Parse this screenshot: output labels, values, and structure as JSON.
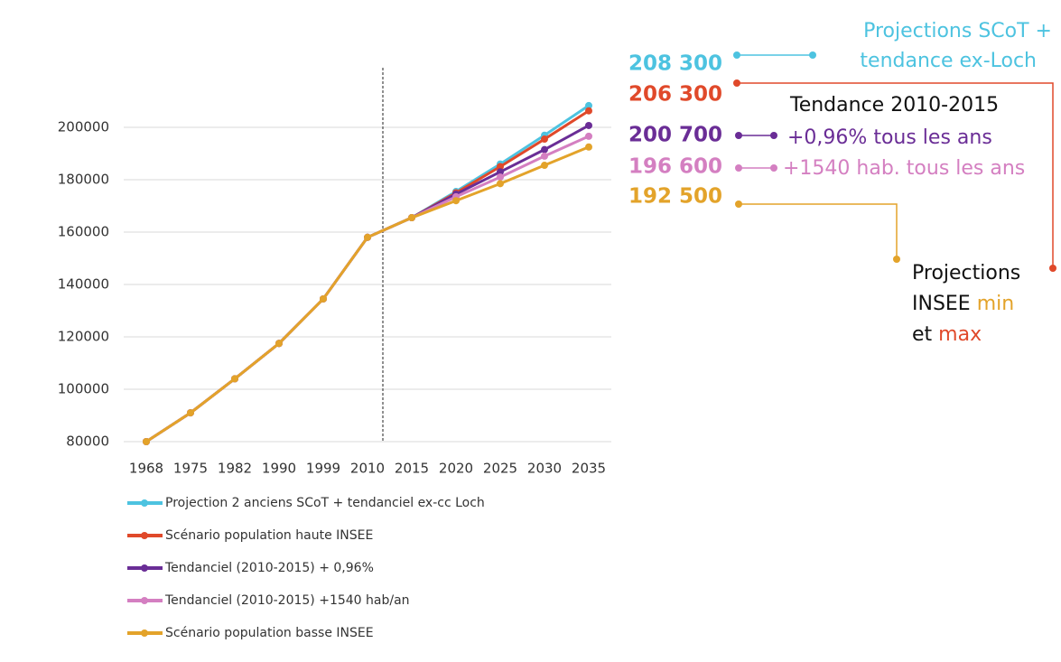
{
  "chart_data": {
    "type": "line",
    "categories": [
      "1968",
      "1975",
      "1982",
      "1990",
      "1999",
      "2010",
      "2015",
      "2020",
      "2025",
      "2030",
      "2035"
    ],
    "ylim": [
      80000,
      210000
    ],
    "yticks": [
      80000,
      100000,
      120000,
      140000,
      160000,
      180000,
      200000
    ],
    "grid": true,
    "series": [
      {
        "name": "Projection 2 anciens SCoT + tendanciel ex-cc Loch",
        "color": "#4dc3e0",
        "values": [
          80000,
          91000,
          104000,
          117500,
          134500,
          158000,
          165500,
          175500,
          186000,
          197000,
          208300
        ],
        "value_labels": [
          null,
          null,
          null,
          null,
          null,
          null,
          null,
          null,
          null,
          null,
          "208 300"
        ]
      },
      {
        "name": "Scénario population haute INSEE",
        "color": "#e0492a",
        "values": [
          80000,
          91000,
          104000,
          117500,
          134500,
          158000,
          165500,
          175000,
          185000,
          195500,
          206300
        ],
        "value_labels": [
          null,
          null,
          null,
          null,
          null,
          null,
          null,
          null,
          null,
          null,
          "206 300"
        ]
      },
      {
        "name": "Tendanciel (2010-2015) + 0,96%",
        "color": "#6a2d96",
        "values": [
          80000,
          91000,
          104000,
          117500,
          134500,
          158000,
          165500,
          174500,
          183000,
          191500,
          200700
        ],
        "value_labels": [
          null,
          null,
          null,
          null,
          null,
          null,
          null,
          null,
          null,
          null,
          "200 700"
        ]
      },
      {
        "name": "Tendanciel (2010-2015) +1540 hab/an",
        "color": "#d47fc1",
        "values": [
          80000,
          91000,
          104000,
          117500,
          134500,
          158000,
          165500,
          173500,
          181000,
          189000,
          196600
        ],
        "value_labels": [
          null,
          null,
          null,
          null,
          null,
          null,
          null,
          null,
          null,
          null,
          "196 600"
        ]
      },
      {
        "name": "Scénario population basse INSEE",
        "color": "#e3a32a",
        "values": [
          80000,
          91000,
          104000,
          117500,
          134500,
          158000,
          165500,
          172000,
          178500,
          185500,
          192500
        ],
        "value_labels": [
          null,
          null,
          null,
          null,
          null,
          null,
          null,
          null,
          null,
          null,
          "192 500"
        ]
      }
    ],
    "annotations": [
      "Projections SCoT +",
      "tendance ex-Loch",
      "Tendance 2010-2015",
      "+0,96% tous les ans",
      "+1540 hab. tous les ans",
      "Projections",
      "INSEE",
      "min",
      "et",
      "max"
    ]
  }
}
